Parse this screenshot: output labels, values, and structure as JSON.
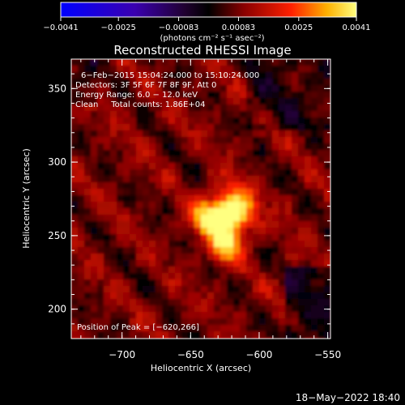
{
  "chart_data": {
    "type": "heatmap",
    "title": "Reconstructed RHESSI Image",
    "xlabel": "Heliocentric X (arcsec)",
    "ylabel": "Heliocentric Y (arcsec)",
    "xlim": [
      -737,
      -548
    ],
    "ylim": [
      180,
      370
    ],
    "x_ticks": [
      -700,
      -650,
      -600,
      -550
    ],
    "x_tick_labels": [
      "−700",
      "−650",
      "−600",
      "−550"
    ],
    "y_ticks": [
      200,
      250,
      300,
      350
    ],
    "y_tick_labels": [
      "200",
      "250",
      "300",
      "350"
    ],
    "colorbar": {
      "range": [
        -0.0041,
        0.0041
      ],
      "tick_values": [
        -0.0041,
        -0.0025,
        -0.00083,
        0.00083,
        0.0025,
        0.0041
      ],
      "tick_labels": [
        "−0.0041",
        "−0.0025",
        "−0.00083",
        "0.00083",
        "0.0025",
        "0.0041"
      ],
      "units": "(photons cm⁻² s⁻¹ asec⁻²)"
    },
    "peak": {
      "x": -620,
      "y": 266,
      "value": 0.0041
    },
    "secondary_sources": [
      {
        "x": -625,
        "y": 243,
        "value": 0.0028
      },
      {
        "x": -640,
        "y": 262,
        "value": 0.0024
      }
    ],
    "annotations": {
      "time_range": "6−Feb−2015 15:04:24.000 to 15:10:24.000",
      "detectors": "Detectors: 3F 5F 6F 7F 8F 9F, Att 0",
      "energy_range": "Energy Range: 6.0 − 12.0 keV",
      "method_counts": "Clean     Total counts: 1.86E+04",
      "peak_position": "Position of Peak = [−620,266]"
    }
  },
  "footer": {
    "timestamp": "18−May−2022 18:40"
  }
}
